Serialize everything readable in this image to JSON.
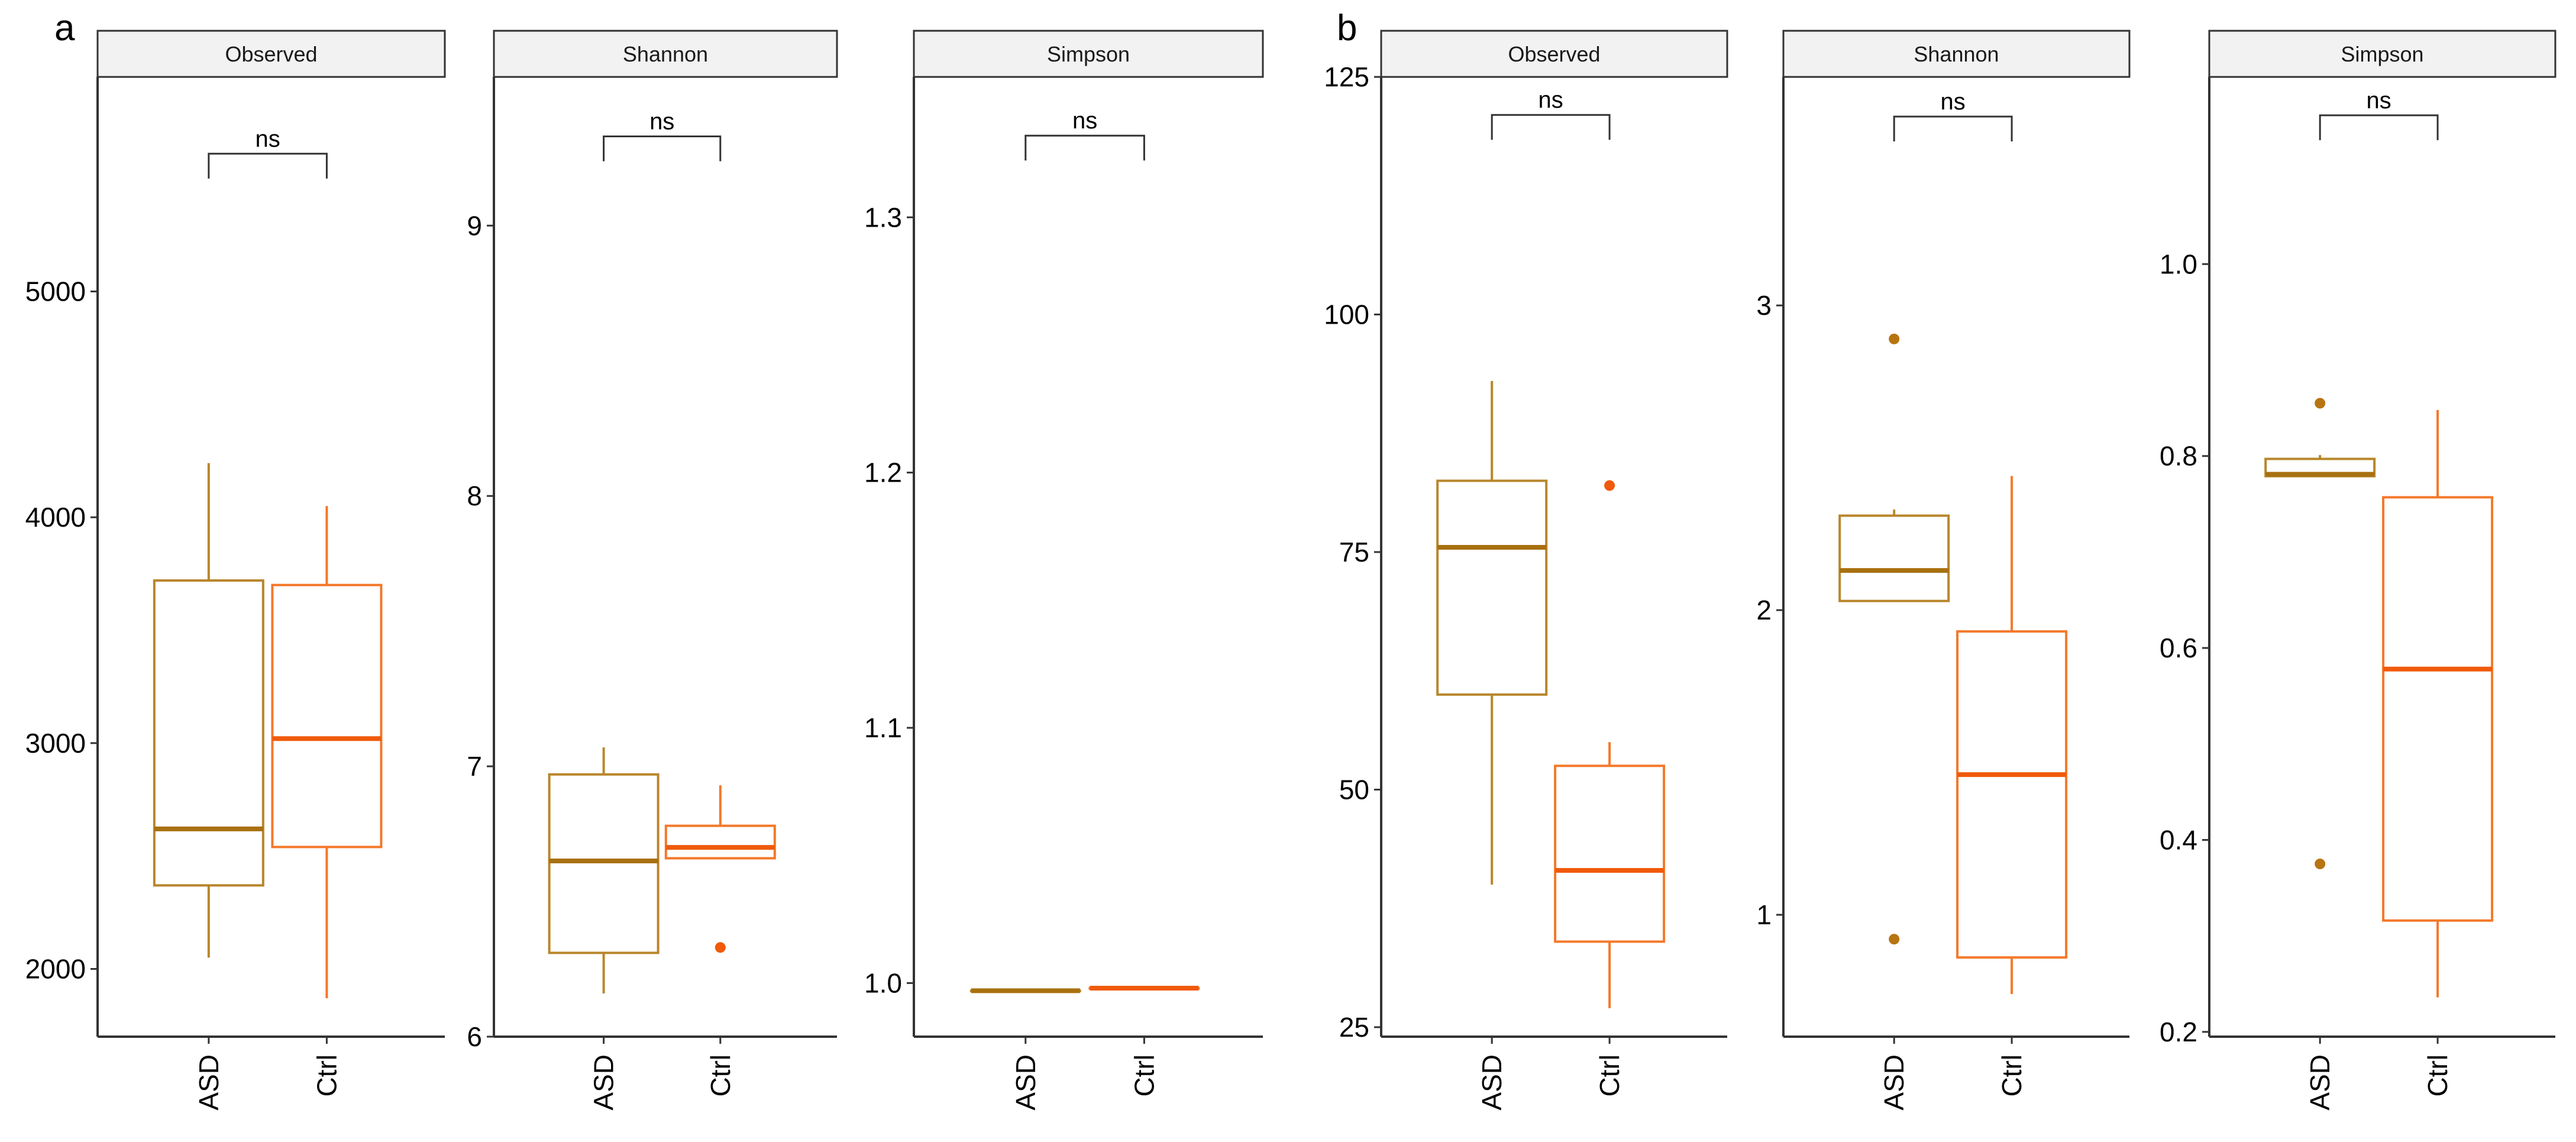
{
  "colors": {
    "ASD": "#b8862b",
    "Ctrl": "#f4782a",
    "ASD_median": "#a8700f",
    "Ctrl_median": "#f05a0a",
    "ASD_point": "#b87410",
    "Ctrl_point": "#f05a0a",
    "strip_fill": "#f2f2f2",
    "axis": "#333333"
  },
  "chart_data": [
    {
      "panel": "a",
      "facet": "Observed",
      "type": "boxplot",
      "categories": [
        "ASD",
        "Ctrl"
      ],
      "ylim": [
        1700,
        5950
      ],
      "yticks": [
        2000,
        3000,
        4000,
        5000
      ],
      "groups": [
        {
          "name": "ASD",
          "whisker_low": 2050,
          "q1": 2370,
          "median": 2620,
          "q3": 3720,
          "whisker_high": 4240,
          "outliers": []
        },
        {
          "name": "Ctrl",
          "whisker_low": 1870,
          "q1": 2540,
          "median": 3020,
          "q3": 3700,
          "whisker_high": 4050,
          "outliers": []
        }
      ],
      "comparison": {
        "label": "ns",
        "y": 5610
      }
    },
    {
      "panel": "a",
      "facet": "Shannon",
      "type": "boxplot",
      "categories": [
        "ASD",
        "Ctrl"
      ],
      "ylim": [
        6.0,
        9.55
      ],
      "yticks": [
        6,
        7,
        8,
        9
      ],
      "groups": [
        {
          "name": "ASD",
          "whisker_low": 6.16,
          "q1": 6.31,
          "median": 6.65,
          "q3": 6.97,
          "whisker_high": 7.07,
          "outliers": []
        },
        {
          "name": "Ctrl",
          "whisker_low": 6.66,
          "q1": 6.66,
          "median": 6.7,
          "q3": 6.78,
          "whisker_high": 6.93,
          "outliers": [
            6.33
          ]
        }
      ],
      "comparison": {
        "label": "ns",
        "y": 9.33
      }
    },
    {
      "panel": "a",
      "facet": "Simpson",
      "type": "boxplot",
      "categories": [
        "ASD",
        "Ctrl"
      ],
      "ylim": [
        0.979,
        1.355
      ],
      "yticks": [
        1.0,
        1.1,
        1.2,
        1.3
      ],
      "groups": [
        {
          "name": "ASD",
          "whisker_low": 0.997,
          "q1": 0.997,
          "median": 0.997,
          "q3": 0.997,
          "whisker_high": 0.997,
          "outliers": []
        },
        {
          "name": "Ctrl",
          "whisker_low": 0.998,
          "q1": 0.998,
          "median": 0.998,
          "q3": 0.998,
          "whisker_high": 0.998,
          "outliers": []
        }
      ],
      "comparison": {
        "label": "ns",
        "y": 1.332
      }
    },
    {
      "panel": "b",
      "facet": "Observed",
      "type": "boxplot",
      "categories": [
        "ASD",
        "Ctrl"
      ],
      "ylim": [
        24,
        125
      ],
      "yticks": [
        25,
        50,
        75,
        100,
        125
      ],
      "groups": [
        {
          "name": "ASD",
          "whisker_low": 40,
          "q1": 60,
          "median": 75.5,
          "q3": 82.5,
          "whisker_high": 93,
          "outliers": []
        },
        {
          "name": "Ctrl",
          "whisker_low": 27,
          "q1": 34,
          "median": 41.5,
          "q3": 52.5,
          "whisker_high": 55,
          "outliers": [
            82
          ]
        }
      ],
      "comparison": {
        "label": "ns",
        "y": 121
      }
    },
    {
      "panel": "b",
      "facet": "Shannon",
      "type": "boxplot",
      "categories": [
        "ASD",
        "Ctrl"
      ],
      "ylim": [
        0.6,
        3.75
      ],
      "yticks": [
        1,
        2,
        3
      ],
      "groups": [
        {
          "name": "ASD",
          "whisker_low": 2.03,
          "q1": 2.03,
          "median": 2.13,
          "q3": 2.31,
          "whisker_high": 2.33,
          "outliers": [
            2.89,
            0.92
          ]
        },
        {
          "name": "Ctrl",
          "whisker_low": 0.74,
          "q1": 0.86,
          "median": 1.46,
          "q3": 1.93,
          "whisker_high": 2.44,
          "outliers": []
        }
      ],
      "comparison": {
        "label": "ns",
        "y": 3.62
      }
    },
    {
      "panel": "b",
      "facet": "Simpson",
      "type": "boxplot",
      "categories": [
        "ASD",
        "Ctrl"
      ],
      "ylim": [
        0.195,
        1.195
      ],
      "yticks": [
        0.2,
        0.4,
        0.6,
        0.8,
        1.0
      ],
      "groups": [
        {
          "name": "ASD",
          "whisker_low": 0.779,
          "q1": 0.779,
          "median": 0.781,
          "q3": 0.797,
          "whisker_high": 0.801,
          "outliers": [
            0.855,
            0.375
          ]
        },
        {
          "name": "Ctrl",
          "whisker_low": 0.236,
          "q1": 0.316,
          "median": 0.578,
          "q3": 0.757,
          "whisker_high": 0.848,
          "outliers": []
        }
      ],
      "comparison": {
        "label": "ns",
        "y": 1.155
      }
    }
  ]
}
